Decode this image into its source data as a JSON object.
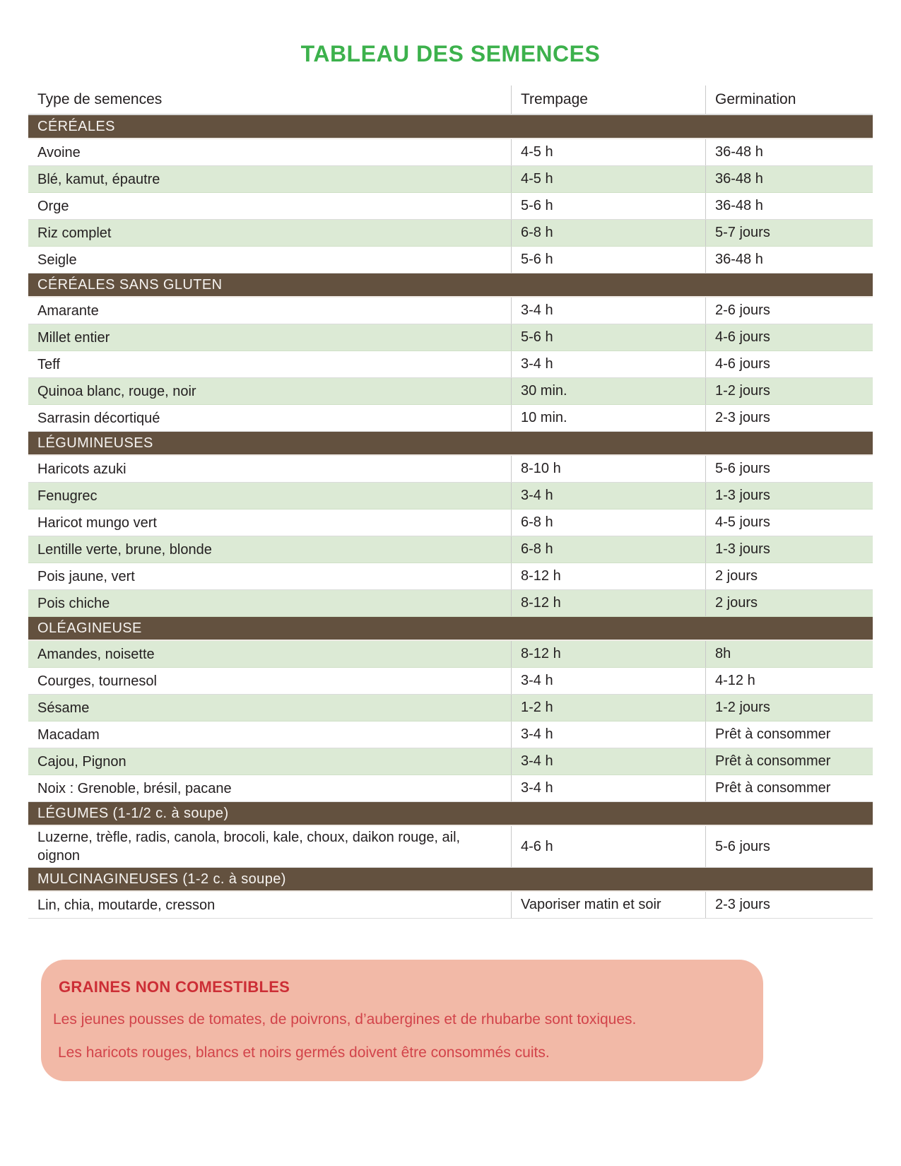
{
  "page": {
    "title": "TABLEAU DES SEMENCES"
  },
  "colors": {
    "title_green": "#3cb14c",
    "section_brown": "#63513f",
    "shaded_row_green": "#dcead5",
    "note_background_pink": "#f2b9a7",
    "note_title_red": "#cc2e36",
    "note_text_red": "#d2434a",
    "body_text": "#231f20"
  },
  "table": {
    "columns": [
      "Type de semences",
      "Trempage",
      "Germination"
    ],
    "sections": [
      {
        "title": "CÉRÉALES",
        "rows": [
          {
            "type": "Avoine",
            "trempage": "4-5 h",
            "germination": "36-48 h",
            "shaded": false
          },
          {
            "type": "Blé, kamut, épautre",
            "trempage": "4-5 h",
            "germination": "36-48 h",
            "shaded": true
          },
          {
            "type": "Orge",
            "trempage": "5-6 h",
            "germination": "36-48 h",
            "shaded": false
          },
          {
            "type": "Riz complet",
            "trempage": "6-8 h",
            "germination": "5-7 jours",
            "shaded": true
          },
          {
            "type": "Seigle",
            "trempage": "5-6 h",
            "germination": "36-48 h",
            "shaded": false
          }
        ]
      },
      {
        "title": "CÉRÉALES SANS GLUTEN",
        "rows": [
          {
            "type": "Amarante",
            "trempage": "3-4 h",
            "germination": "2-6 jours",
            "shaded": false
          },
          {
            "type": "Millet entier",
            "trempage": "5-6 h",
            "germination": "4-6 jours",
            "shaded": true
          },
          {
            "type": "Teff",
            "trempage": "3-4 h",
            "germination": "4-6 jours",
            "shaded": false
          },
          {
            "type": "Quinoa blanc, rouge, noir",
            "trempage": "30 min.",
            "germination": "1-2 jours",
            "shaded": true
          },
          {
            "type": "Sarrasin décortiqué",
            "trempage": "10 min.",
            "germination": "2-3 jours",
            "shaded": false
          }
        ]
      },
      {
        "title": "LÉGUMINEUSES",
        "rows": [
          {
            "type": "Haricots azuki",
            "trempage": "8-10 h",
            "germination": "5-6 jours",
            "shaded": false
          },
          {
            "type": "Fenugrec",
            "trempage": "3-4 h",
            "germination": "1-3 jours",
            "shaded": true
          },
          {
            "type": "Haricot mungo vert",
            "trempage": "6-8 h",
            "germination": "4-5 jours",
            "shaded": false
          },
          {
            "type": "Lentille verte, brune, blonde",
            "trempage": "6-8 h",
            "germination": "1-3 jours",
            "shaded": true
          },
          {
            "type": "Pois jaune, vert",
            "trempage": "8-12 h",
            "germination": "2 jours",
            "shaded": false
          },
          {
            "type": "Pois chiche",
            "trempage": "8-12 h",
            "germination": "2 jours",
            "shaded": true
          }
        ]
      },
      {
        "title": "OLÉAGINEUSE",
        "rows": [
          {
            "type": "Amandes, noisette",
            "trempage": "8-12 h",
            "germination": "8h",
            "shaded": true
          },
          {
            "type": "Courges, tournesol",
            "trempage": "3-4 h",
            "germination": "4-12 h",
            "shaded": false
          },
          {
            "type": "Sésame",
            "trempage": "1-2 h",
            "germination": "1-2 jours",
            "shaded": true
          },
          {
            "type": "Macadam",
            "trempage": "3-4 h",
            "germination": "Prêt à consommer",
            "shaded": false
          },
          {
            "type": "Cajou, Pignon",
            "trempage": "3-4 h",
            "germination": "Prêt à consommer",
            "shaded": true
          },
          {
            "type": "Noix : Grenoble, brésil, pacane",
            "trempage": "3-4 h",
            "germination": "Prêt à consommer",
            "shaded": false
          }
        ]
      },
      {
        "title": "LÉGUMES (1-1/2 c. à soupe)",
        "rows": [
          {
            "type": "Luzerne, trèfle, radis, canola, brocoli, kale, choux, daikon rouge, ail, oignon",
            "trempage": "4-6 h",
            "germination": "5-6 jours",
            "shaded": false
          }
        ]
      },
      {
        "title": "MULCINAGINEUSES (1-2 c. à soupe)",
        "rows": [
          {
            "type": "Lin, chia, moutarde, cresson",
            "trempage": "Vaporiser matin et soir",
            "germination": "2-3 jours",
            "shaded": false
          }
        ]
      }
    ]
  },
  "note": {
    "title": "GRAINES NON COMESTIBLES",
    "lines": [
      "Les jeunes pousses de tomates, de poivrons, d’aubergines et de rhubarbe sont toxiques.",
      "Les haricots rouges, blancs et noirs germés doivent être consommés cuits."
    ]
  }
}
